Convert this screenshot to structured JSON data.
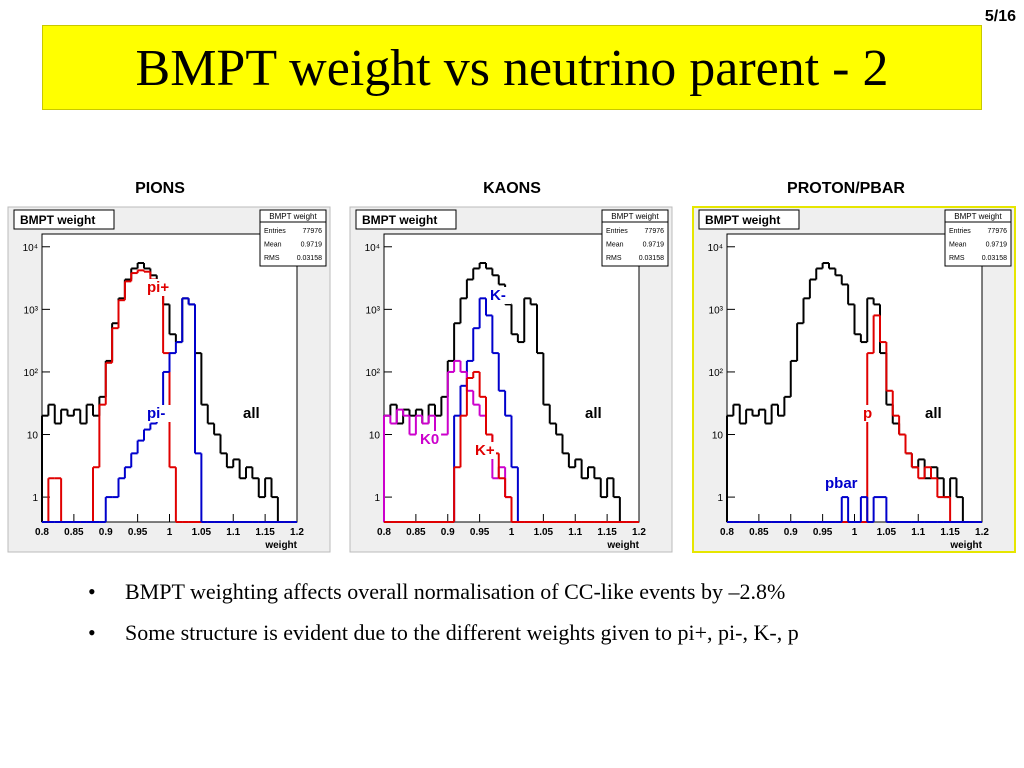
{
  "page_number": "5/16",
  "title": "BMPT weight vs neutrino parent - 2",
  "chart_data": [
    {
      "type": "histogram",
      "heading": "PIONS",
      "title": "BMPT weight",
      "stats": {
        "title": "BMPT weight",
        "rows": [
          [
            "Entries",
            "77976"
          ],
          [
            "Mean",
            "0.9719"
          ],
          [
            "RMS",
            "0.03158"
          ]
        ]
      },
      "xlabel": "weight",
      "bins": [
        0.8,
        0.81,
        0.82,
        0.83,
        0.84,
        0.85,
        0.86,
        0.87,
        0.88,
        0.89,
        0.9,
        0.91,
        0.92,
        0.93,
        0.94,
        0.95,
        0.96,
        0.97,
        0.98,
        0.99,
        1.0,
        1.01,
        1.02,
        1.03,
        1.04,
        1.05,
        1.06,
        1.07,
        1.08,
        1.09,
        1.1,
        1.11,
        1.12,
        1.13,
        1.14,
        1.15,
        1.16,
        1.17,
        1.18,
        1.19,
        1.2
      ],
      "xlim": [
        0.8,
        1.2
      ],
      "xticks": [
        0.8,
        0.85,
        0.9,
        0.95,
        1,
        1.05,
        1.1,
        1.15,
        1.2
      ],
      "ylim": [
        0.4,
        16000
      ],
      "log_y": true,
      "yticks": [
        1,
        10,
        {
          "value": 100,
          "label": "10²"
        },
        {
          "value": 1000,
          "label": "10³"
        },
        {
          "value": 10000,
          "label": "10⁴"
        }
      ],
      "series": [
        {
          "name": "all",
          "color": "#000000",
          "values": [
            20,
            30,
            15,
            25,
            20,
            25,
            15,
            30,
            20,
            40,
            150,
            600,
            1500,
            3000,
            4500,
            5500,
            4500,
            3500,
            2500,
            1200,
            400,
            300,
            1500,
            1200,
            200,
            30,
            15,
            10,
            5,
            3,
            4,
            2,
            3,
            2,
            1,
            2,
            1,
            0,
            0,
            0
          ]
        },
        {
          "name": "pi+",
          "color": "#e00000",
          "values": [
            0,
            2,
            2,
            0,
            0,
            0,
            0,
            0,
            3,
            30,
            140,
            500,
            1400,
            2800,
            3800,
            4200,
            4000,
            3000,
            1800,
            200,
            3,
            0,
            0,
            0,
            0,
            0,
            0,
            0,
            0,
            0,
            0,
            0,
            0,
            0,
            0,
            0,
            0,
            0,
            0,
            0
          ]
        },
        {
          "name": "pi-",
          "color": "#0000cc",
          "values": [
            0,
            0,
            0,
            0,
            0,
            0,
            0,
            0,
            0,
            0,
            1,
            1,
            2,
            3,
            5,
            8,
            12,
            15,
            25,
            100,
            200,
            300,
            1500,
            1200,
            5,
            0,
            0,
            0,
            0,
            0,
            0,
            0,
            0,
            0,
            0,
            0,
            0,
            0,
            0,
            0
          ]
        }
      ]
    },
    {
      "type": "histogram",
      "heading": "KAONS",
      "title": "BMPT weight",
      "stats": {
        "title": "BMPT weight",
        "rows": [
          [
            "Entries",
            "77976"
          ],
          [
            "Mean",
            "0.9719"
          ],
          [
            "RMS",
            "0.03158"
          ]
        ]
      },
      "xlabel": "weight",
      "bins": [
        0.8,
        0.81,
        0.82,
        0.83,
        0.84,
        0.85,
        0.86,
        0.87,
        0.88,
        0.89,
        0.9,
        0.91,
        0.92,
        0.93,
        0.94,
        0.95,
        0.96,
        0.97,
        0.98,
        0.99,
        1.0,
        1.01,
        1.02,
        1.03,
        1.04,
        1.05,
        1.06,
        1.07,
        1.08,
        1.09,
        1.1,
        1.11,
        1.12,
        1.13,
        1.14,
        1.15,
        1.16,
        1.17,
        1.18,
        1.19,
        1.2
      ],
      "xlim": [
        0.8,
        1.2
      ],
      "xticks": [
        0.8,
        0.85,
        0.9,
        0.95,
        1,
        1.05,
        1.1,
        1.15,
        1.2
      ],
      "ylim": [
        0.4,
        16000
      ],
      "log_y": true,
      "yticks": [
        1,
        10,
        {
          "value": 100,
          "label": "10²"
        },
        {
          "value": 1000,
          "label": "10³"
        },
        {
          "value": 10000,
          "label": "10⁴"
        }
      ],
      "series": [
        {
          "name": "all",
          "color": "#000000",
          "values": [
            20,
            30,
            15,
            25,
            20,
            25,
            15,
            30,
            20,
            40,
            150,
            600,
            1500,
            3000,
            4500,
            5500,
            4500,
            3500,
            2500,
            1200,
            400,
            300,
            1500,
            1200,
            200,
            30,
            15,
            10,
            5,
            3,
            4,
            2,
            3,
            2,
            1,
            2,
            1,
            0,
            0,
            0
          ]
        },
        {
          "name": "K-",
          "color": "#0000cc",
          "values": [
            0,
            0,
            0,
            0,
            0,
            0,
            0,
            0,
            0,
            0,
            0,
            20,
            60,
            150,
            500,
            1500,
            800,
            200,
            50,
            20,
            3,
            0,
            0,
            0,
            0,
            0,
            0,
            0,
            0,
            0,
            0,
            0,
            0,
            0,
            0,
            0,
            0,
            0,
            0,
            0
          ]
        },
        {
          "name": "K0",
          "color": "#cc00cc",
          "values": [
            20,
            15,
            25,
            20,
            10,
            20,
            15,
            20,
            10,
            10,
            100,
            150,
            100,
            50,
            30,
            20,
            10,
            2,
            3,
            1,
            0,
            0,
            0,
            0,
            0,
            0,
            0,
            0,
            0,
            0,
            0,
            0,
            0,
            0,
            0,
            0,
            0,
            0,
            0,
            0
          ]
        },
        {
          "name": "K+",
          "color": "#e00000",
          "values": [
            0,
            0,
            0,
            0,
            0,
            0,
            0,
            0,
            0,
            0,
            0,
            3,
            20,
            80,
            100,
            40,
            10,
            5,
            2,
            1,
            0,
            0,
            0,
            0,
            0,
            0,
            0,
            0,
            0,
            0,
            0,
            0,
            0,
            0,
            0,
            0,
            0,
            0,
            0,
            0
          ]
        }
      ]
    },
    {
      "type": "histogram",
      "heading": "PROTON/PBAR",
      "title": "BMPT weight",
      "stats": {
        "title": "BMPT weight",
        "rows": [
          [
            "Entries",
            "77976"
          ],
          [
            "Mean",
            "0.9719"
          ],
          [
            "RMS",
            "0.03158"
          ]
        ]
      },
      "xlabel": "weight",
      "bins": [
        0.8,
        0.81,
        0.82,
        0.83,
        0.84,
        0.85,
        0.86,
        0.87,
        0.88,
        0.89,
        0.9,
        0.91,
        0.92,
        0.93,
        0.94,
        0.95,
        0.96,
        0.97,
        0.98,
        0.99,
        1.0,
        1.01,
        1.02,
        1.03,
        1.04,
        1.05,
        1.06,
        1.07,
        1.08,
        1.09,
        1.1,
        1.11,
        1.12,
        1.13,
        1.14,
        1.15,
        1.16,
        1.17,
        1.18,
        1.19,
        1.2
      ],
      "xlim": [
        0.8,
        1.2
      ],
      "xticks": [
        0.8,
        0.85,
        0.9,
        0.95,
        1,
        1.05,
        1.1,
        1.15,
        1.2
      ],
      "ylim": [
        0.4,
        16000
      ],
      "log_y": true,
      "yticks": [
        1,
        10,
        {
          "value": 100,
          "label": "10²"
        },
        {
          "value": 1000,
          "label": "10³"
        },
        {
          "value": 10000,
          "label": "10⁴"
        }
      ],
      "series": [
        {
          "name": "all",
          "color": "#000000",
          "values": [
            20,
            30,
            15,
            25,
            20,
            25,
            15,
            30,
            20,
            40,
            150,
            600,
            1500,
            3000,
            4500,
            5500,
            4500,
            3500,
            2500,
            1200,
            400,
            300,
            1500,
            1200,
            200,
            30,
            15,
            10,
            5,
            3,
            4,
            2,
            3,
            2,
            1,
            2,
            1,
            0,
            0,
            0
          ]
        },
        {
          "name": "p",
          "color": "#e00000",
          "values": [
            0,
            0,
            0,
            0,
            0,
            0,
            0,
            0,
            0,
            0,
            0,
            0,
            0,
            0,
            0,
            0,
            0,
            0,
            0,
            0,
            0,
            0,
            200,
            800,
            300,
            50,
            20,
            10,
            5,
            3,
            2,
            3,
            2,
            1,
            1,
            0,
            0,
            0,
            0,
            0
          ]
        },
        {
          "name": "pbar",
          "color": "#0000cc",
          "values": [
            0,
            0,
            0,
            0,
            0,
            0,
            0,
            0,
            0,
            0,
            0,
            0,
            0,
            0,
            0,
            0,
            0,
            0,
            1,
            0,
            0,
            1,
            0,
            1,
            1,
            0,
            0,
            0,
            0,
            0,
            0,
            0,
            0,
            0,
            0,
            0,
            0,
            0,
            0,
            0
          ]
        }
      ]
    }
  ],
  "bullets": [
    "BMPT weighting affects overall normalisation of CC-like events by –2.8%",
    "Some structure is evident due to the different weights given to pi+, pi-, K-, p"
  ]
}
